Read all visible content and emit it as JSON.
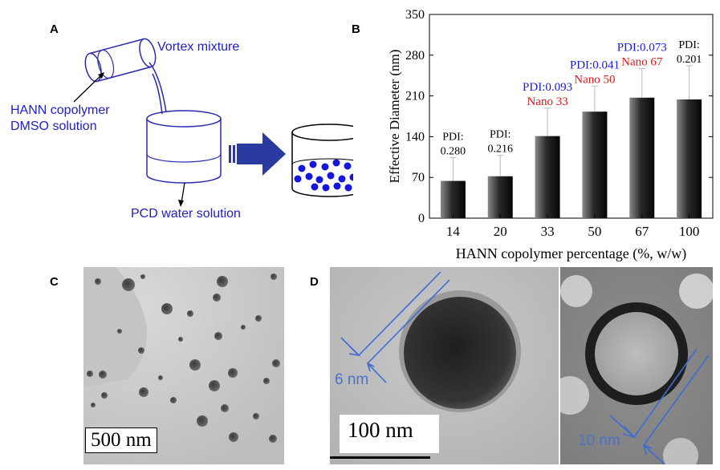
{
  "panels": {
    "a": "A",
    "b": "B",
    "c": "C",
    "d": "D"
  },
  "schematic": {
    "vortex_label": "Vortex mixture",
    "copolymer_label_1": "HANN  copolymer",
    "copolymer_label_2": "DMSO solution",
    "pcd_label": "PCD water solution"
  },
  "chart_data": {
    "type": "bar",
    "categories": [
      "14",
      "20",
      "33",
      "50",
      "67",
      "100"
    ],
    "values": [
      64,
      72,
      141,
      183,
      207,
      204
    ],
    "errors": [
      40,
      36,
      48,
      44,
      50,
      58
    ],
    "annotations": [
      {
        "pdi_prefix": "PDI:",
        "pdi_value": "0.280",
        "name": ""
      },
      {
        "pdi_prefix": "PDI:",
        "pdi_value": "0.216",
        "name": ""
      },
      {
        "pdi_prefix": "PDI:",
        "pdi_value": "0.093",
        "name": "Nano 33"
      },
      {
        "pdi_prefix": "PDI:",
        "pdi_value": "0.041",
        "name": "Nano 50"
      },
      {
        "pdi_prefix": "PDI:",
        "pdi_value": "0.073",
        "name": "Nano 67"
      },
      {
        "pdi_prefix": "PDI:",
        "pdi_value": "0.201",
        "name": ""
      }
    ],
    "ylabel": "Effective Diameter (nm)",
    "xlabel": "HANN copolymer percentage (%, w/w)",
    "ylim": [
      0,
      350
    ],
    "yticks": [
      0,
      70,
      140,
      210,
      280,
      350
    ],
    "colors": {
      "pdi_highlight": "#1a1ae6",
      "nano": "#e01818",
      "pdi_plain": "#000000"
    }
  },
  "micrographs": {
    "c_scale_label": "500 nm",
    "d_scale_label": "100 nm",
    "d_measure_left": "6 nm",
    "d_measure_right": "10 nm"
  }
}
